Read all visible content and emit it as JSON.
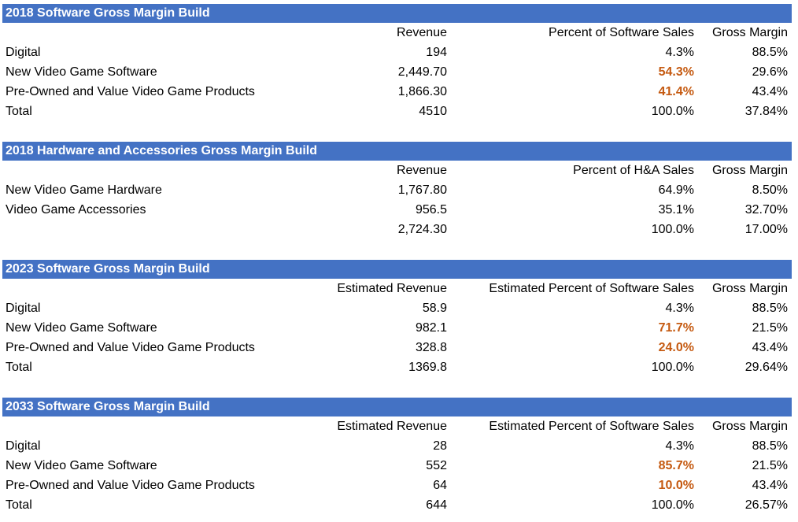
{
  "colors": {
    "header_bar": "#4472C4",
    "highlight": "#C55A11"
  },
  "sections": [
    {
      "title": "2018 Software Gross Margin Build",
      "headers": [
        "",
        "Revenue",
        "Percent of Software Sales",
        "Gross Margin"
      ],
      "rows": [
        {
          "label": "Digital",
          "revenue": "194",
          "percent": "4.3%",
          "margin": "88.5%"
        },
        {
          "label": "New Video Game Software",
          "revenue": "2,449.70",
          "percent": "54.3%",
          "margin": "29.6%"
        },
        {
          "label": "Pre-Owned and Value Video Game Products",
          "revenue": "1,866.30",
          "percent": "41.4%",
          "margin": "43.4%"
        },
        {
          "label": "Total",
          "revenue": "4510",
          "percent": "100.0%",
          "margin": "37.84%"
        }
      ]
    },
    {
      "title": "2018 Hardware and Accessories Gross Margin Build",
      "headers": [
        "",
        "Revenue",
        "Percent of H&A Sales",
        "Gross Margin"
      ],
      "rows": [
        {
          "label": "New Video Game Hardware",
          "revenue": "1,767.80",
          "percent": "64.9%",
          "margin": "8.50%"
        },
        {
          "label": "Video Game Accessories",
          "revenue": "956.5",
          "percent": "35.1%",
          "margin": "32.70%"
        },
        {
          "label": "",
          "revenue": "2,724.30",
          "percent": "100.0%",
          "margin": "17.00%"
        }
      ]
    },
    {
      "title": "2023 Software Gross Margin Build",
      "headers": [
        "",
        "Estimated Revenue",
        "Estimated Percent of Software Sales",
        "Gross Margin"
      ],
      "rows": [
        {
          "label": "Digital",
          "revenue": "58.9",
          "percent": "4.3%",
          "margin": "88.5%"
        },
        {
          "label": "New Video Game Software",
          "revenue": "982.1",
          "percent": "71.7%",
          "margin": "21.5%"
        },
        {
          "label": "Pre-Owned and Value Video Game Products",
          "revenue": "328.8",
          "percent": "24.0%",
          "margin": "43.4%"
        },
        {
          "label": "Total",
          "revenue": "1369.8",
          "percent": "100.0%",
          "margin": "29.64%"
        }
      ]
    },
    {
      "title": "2033 Software Gross Margin Build",
      "headers": [
        "",
        "Estimated Revenue",
        "Estimated Percent of Software Sales",
        "Gross Margin"
      ],
      "rows": [
        {
          "label": "Digital",
          "revenue": "28",
          "percent": "4.3%",
          "margin": "88.5%"
        },
        {
          "label": "New Video Game Software",
          "revenue": "552",
          "percent": "85.7%",
          "margin": "21.5%"
        },
        {
          "label": "Pre-Owned and Value Video Game Products",
          "revenue": "64",
          "percent": "10.0%",
          "margin": "43.4%"
        },
        {
          "label": "Total",
          "revenue": "644",
          "percent": "100.0%",
          "margin": "26.57%"
        }
      ]
    }
  ]
}
